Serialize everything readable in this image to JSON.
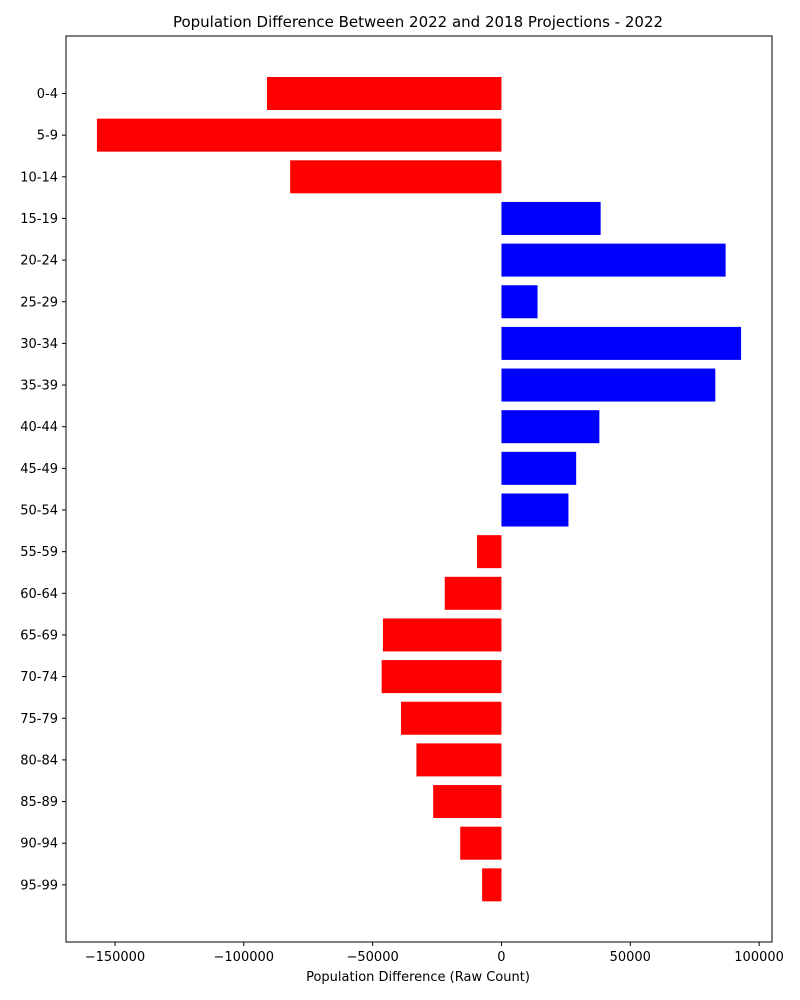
{
  "chart_data": {
    "type": "bar",
    "orientation": "horizontal",
    "title": "Population Difference Between 2022 and 2018 Projections - 2022",
    "xlabel": "Population Difference (Raw Count)",
    "ylabel": "",
    "categories": [
      "0-4",
      "5-9",
      "10-14",
      "15-19",
      "20-24",
      "25-29",
      "30-34",
      "35-39",
      "40-44",
      "45-49",
      "50-54",
      "55-59",
      "60-64",
      "65-69",
      "70-74",
      "75-79",
      "80-84",
      "85-89",
      "90-94",
      "95-99"
    ],
    "values": [
      -91000,
      -157000,
      -82000,
      38500,
      87000,
      14000,
      93000,
      83000,
      38000,
      29000,
      26000,
      -9500,
      -22000,
      -46000,
      -46500,
      -39000,
      -33000,
      -26500,
      -16000,
      -7500
    ],
    "xlim": [
      -169000,
      105000
    ],
    "xticks": [
      -150000,
      -100000,
      -50000,
      0,
      50000,
      100000
    ],
    "xtick_labels": [
      "−150000",
      "−100000",
      "−50000",
      "0",
      "50000",
      "100000"
    ],
    "colors": {
      "positive": "#0000ff",
      "negative": "#ff0000"
    },
    "grid": false,
    "legend": "none"
  }
}
